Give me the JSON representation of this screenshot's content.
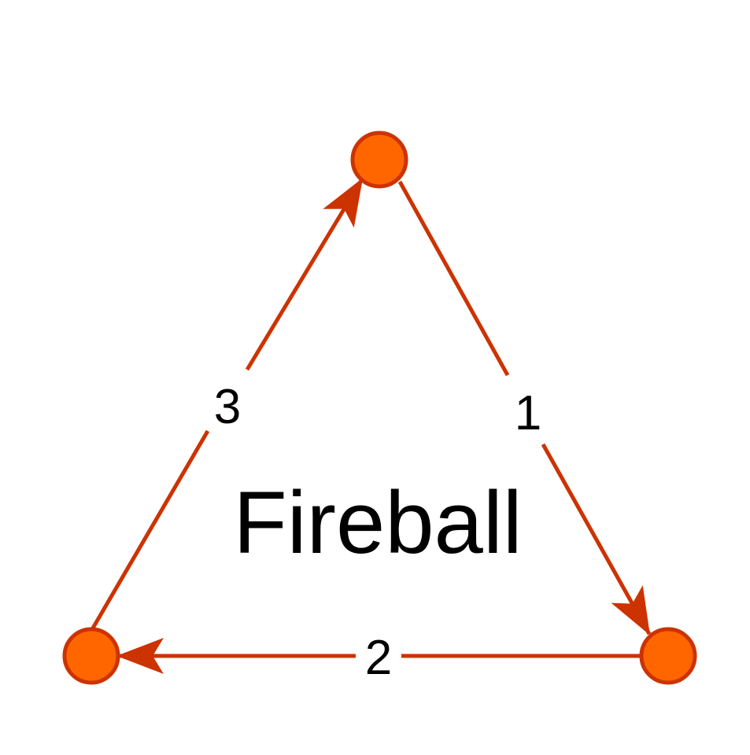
{
  "diagram": {
    "title": "Fireball",
    "colors": {
      "edge": "#cc3300",
      "node_fill": "#ff6600",
      "node_stroke": "#cc3300",
      "text": "#000000"
    },
    "nodes": [
      {
        "id": "top"
      },
      {
        "id": "bottom-right"
      },
      {
        "id": "bottom-left"
      }
    ],
    "edges": [
      {
        "from": "top",
        "to": "bottom-right",
        "label": "1"
      },
      {
        "from": "bottom-right",
        "to": "bottom-left",
        "label": "2"
      },
      {
        "from": "bottom-left",
        "to": "top",
        "label": "3"
      }
    ]
  }
}
